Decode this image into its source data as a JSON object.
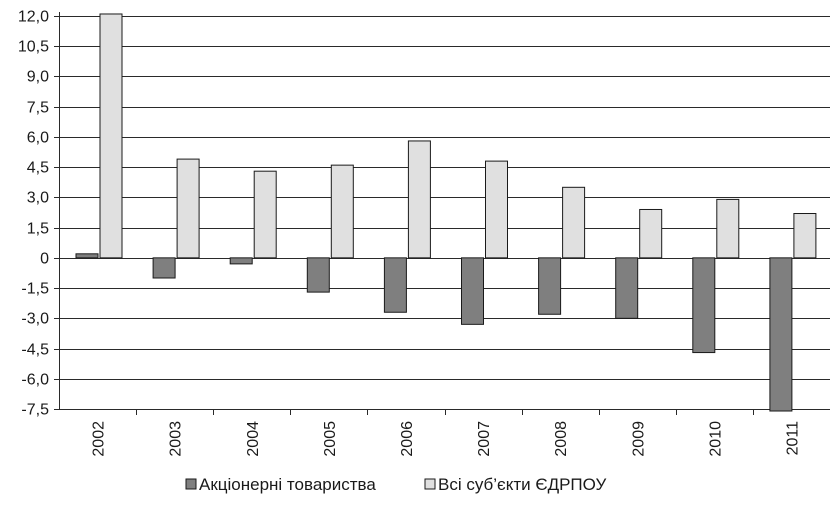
{
  "chart_data": {
    "type": "bar",
    "title": "",
    "xlabel": "",
    "ylabel": "",
    "categories": [
      "2002",
      "2003",
      "2004",
      "2005",
      "2006",
      "2007",
      "2008",
      "2009",
      "2010",
      "2011"
    ],
    "series": [
      {
        "name": "Акціонерні товариства",
        "color": "#7f7f7f",
        "values": [
          0.2,
          -1.0,
          -0.3,
          -1.7,
          -2.7,
          -3.3,
          -2.8,
          -3.0,
          -4.7,
          -7.6
        ]
      },
      {
        "name": "Всі суб’єкти ЄДРПОУ",
        "color": "#e0e0e0",
        "values": [
          12.1,
          4.9,
          4.3,
          4.6,
          5.8,
          4.8,
          3.5,
          2.4,
          2.9,
          2.2
        ]
      }
    ],
    "ylim": [
      -7.5,
      12.0
    ],
    "yticks": [
      12.0,
      10.5,
      9.0,
      7.5,
      6.0,
      4.5,
      3.0,
      1.5,
      0,
      -1.5,
      -3.0,
      -4.5,
      -6.0,
      -7.5
    ],
    "ytick_labels": [
      "12,0",
      "10,5",
      "9,0",
      "7,5",
      "6,0",
      "4,5",
      "3,0",
      "1,5",
      "0",
      "-1,5",
      "-3,0",
      "-4,5",
      "-6,0",
      "-7,5"
    ],
    "grid": true,
    "legend_position": "bottom"
  }
}
